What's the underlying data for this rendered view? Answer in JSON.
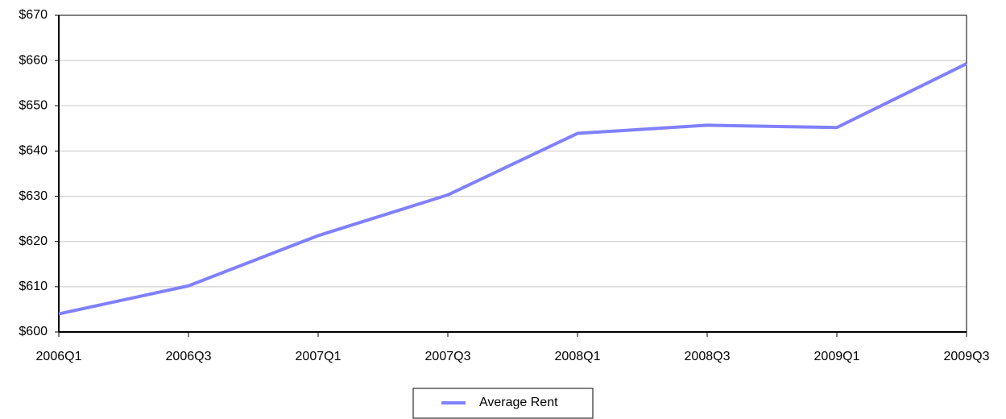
{
  "chart_data": {
    "type": "line",
    "categories": [
      "2006Q1",
      "2006Q3",
      "2007Q1",
      "2007Q3",
      "2008Q1",
      "2008Q3",
      "2009Q1",
      "2009Q3"
    ],
    "series": [
      {
        "name": "Average Rent",
        "color": "#8080ff",
        "values": [
          604.0,
          610.2,
          621.3,
          630.3,
          643.9,
          645.7,
          645.2,
          659.3
        ]
      }
    ],
    "ylim": [
      600,
      670
    ],
    "yticks": [
      {
        "value": 600,
        "label": "$600"
      },
      {
        "value": 610,
        "label": "$610"
      },
      {
        "value": 620,
        "label": "$620"
      },
      {
        "value": 630,
        "label": "$630"
      },
      {
        "value": 640,
        "label": "$640"
      },
      {
        "value": 650,
        "label": "$650"
      },
      {
        "value": 660,
        "label": "$660"
      },
      {
        "value": 670,
        "label": "$670"
      }
    ],
    "grid": true,
    "legend": "bottom"
  }
}
